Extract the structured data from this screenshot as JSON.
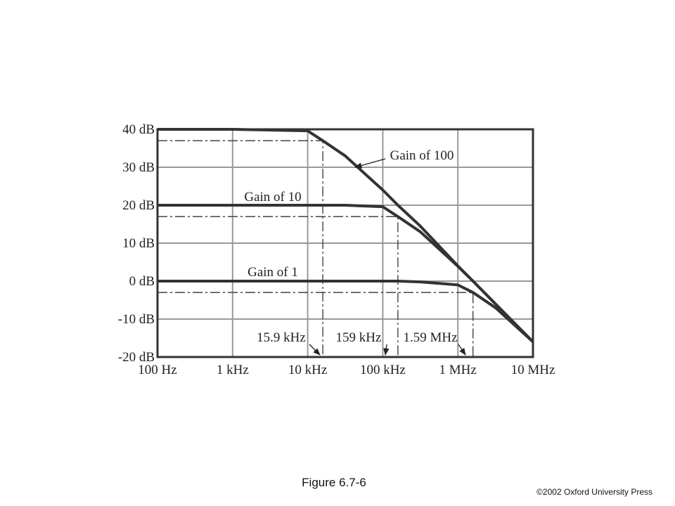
{
  "chart_data": {
    "type": "line",
    "x": [
      100,
      1000,
      10000,
      15900,
      31600,
      100000,
      159000,
      316000,
      1000000,
      1590000,
      3160000,
      10000000
    ],
    "series": [
      {
        "name": "Gain of 100",
        "color": "#333333",
        "values": [
          40,
          40,
          39.6,
          37,
          33,
          24,
          20,
          14.5,
          4,
          0,
          -6,
          -16
        ]
      },
      {
        "name": "Gain of 10",
        "color": "#333333",
        "values": [
          20,
          20,
          20,
          20,
          20,
          19.6,
          17,
          13,
          3.9,
          0,
          -6,
          -16
        ]
      },
      {
        "name": "Gain of 1",
        "color": "#333333",
        "values": [
          0,
          0,
          0,
          0,
          0,
          0,
          0,
          -0.2,
          -1,
          -3,
          -7,
          -16
        ]
      }
    ],
    "cutoffs": [
      {
        "label": "15.9 kHz",
        "x": 15900,
        "y": 37
      },
      {
        "label": "159 kHz",
        "x": 159000,
        "y": 17
      },
      {
        "label": "1.59 MHz",
        "x": 1590000,
        "y": -3
      }
    ],
    "xscale": "log",
    "xlim": [
      100,
      10000000
    ],
    "xticks": [
      {
        "value": 100,
        "label": "100 Hz"
      },
      {
        "value": 1000,
        "label": "1 kHz"
      },
      {
        "value": 10000,
        "label": "10 kHz"
      },
      {
        "value": 100000,
        "label": "100 kHz"
      },
      {
        "value": 1000000,
        "label": "1 MHz"
      },
      {
        "value": 10000000,
        "label": "10 MHz"
      }
    ],
    "ylim": [
      -20,
      40
    ],
    "yticks": [
      {
        "value": -20,
        "label": "-20 dB"
      },
      {
        "value": -10,
        "label": "-10 dB"
      },
      {
        "value": 0,
        "label": "0 dB"
      },
      {
        "value": 10,
        "label": "10 dB"
      },
      {
        "value": 20,
        "label": "20 dB"
      },
      {
        "value": 30,
        "label": "30 dB"
      },
      {
        "value": 40,
        "label": "40 dB"
      }
    ],
    "grid": true
  },
  "caption": "Figure 6.7-6",
  "copyright": "©2002 Oxford University Press"
}
